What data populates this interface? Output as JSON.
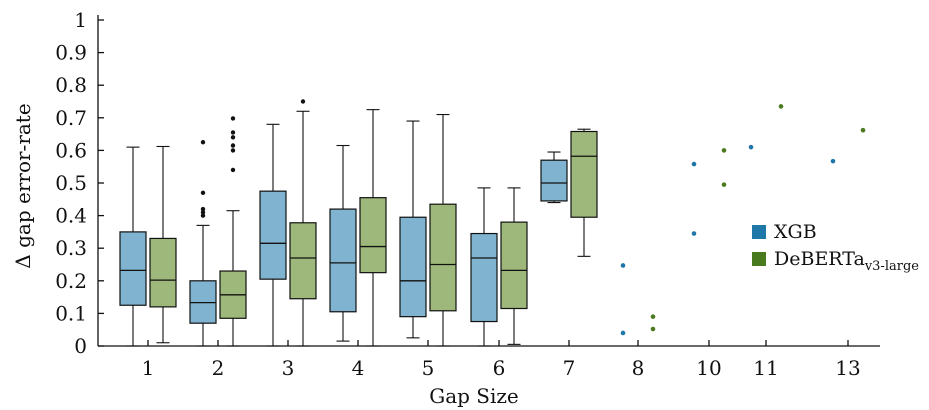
{
  "chart_data": {
    "type": "box",
    "xlabel": "Gap Size",
    "ylabel": "Δ gap error-rate",
    "ylim": [
      0,
      1
    ],
    "yticks": [
      "0",
      "0.1",
      "0.2",
      "0.3",
      "0.4",
      "0.5",
      "0.6",
      "0.7",
      "0.8",
      "0.9",
      "1"
    ],
    "categories": [
      "1",
      "2",
      "3",
      "4",
      "5",
      "6",
      "7",
      "8",
      "10",
      "11",
      "13"
    ],
    "legend": {
      "placement": "right",
      "entries": [
        {
          "label": "XGB",
          "sub": ""
        },
        {
          "label": "DeBERTa",
          "sub": "v3-large"
        }
      ]
    },
    "series": [
      {
        "name": "XGB",
        "color": "#7fb3cf",
        "point_color": "#1f77a8",
        "boxes": [
          {
            "category": "1",
            "whislo": 0.0,
            "q1": 0.125,
            "med": 0.232,
            "q3": 0.35,
            "whishi": 0.61,
            "fliers": []
          },
          {
            "category": "2",
            "whislo": 0.0,
            "q1": 0.07,
            "med": 0.133,
            "q3": 0.2,
            "whishi": 0.37,
            "fliers": [
              0.4,
              0.41,
              0.42,
              0.47,
              0.625
            ]
          },
          {
            "category": "3",
            "whislo": 0.0,
            "q1": 0.205,
            "med": 0.315,
            "q3": 0.475,
            "whishi": 0.68,
            "fliers": []
          },
          {
            "category": "4",
            "whislo": 0.015,
            "q1": 0.105,
            "med": 0.255,
            "q3": 0.42,
            "whishi": 0.615,
            "fliers": []
          },
          {
            "category": "5",
            "whislo": 0.025,
            "q1": 0.09,
            "med": 0.2,
            "q3": 0.395,
            "whishi": 0.69,
            "fliers": []
          },
          {
            "category": "6",
            "whislo": 0.0,
            "q1": 0.075,
            "med": 0.27,
            "q3": 0.345,
            "whishi": 0.485,
            "fliers": []
          },
          {
            "category": "7",
            "whislo": 0.44,
            "q1": 0.445,
            "med": 0.5,
            "q3": 0.57,
            "whishi": 0.595,
            "fliers": []
          },
          {
            "category": "8",
            "points": [
              0.04,
              0.247
            ]
          },
          {
            "category": "10",
            "points": [
              0.345,
              0.558
            ]
          },
          {
            "category": "11",
            "points": [
              0.61
            ]
          },
          {
            "category": "13",
            "points": [
              0.567
            ]
          }
        ]
      },
      {
        "name": "DeBERTa v3-large",
        "color": "#9db87a",
        "point_color": "#4a7a1e",
        "boxes": [
          {
            "category": "1",
            "whislo": 0.01,
            "q1": 0.12,
            "med": 0.202,
            "q3": 0.33,
            "whishi": 0.612,
            "fliers": []
          },
          {
            "category": "2",
            "whislo": 0.0,
            "q1": 0.085,
            "med": 0.157,
            "q3": 0.23,
            "whishi": 0.415,
            "fliers": [
              0.54,
              0.6,
              0.615,
              0.64,
              0.655,
              0.698
            ]
          },
          {
            "category": "3",
            "whislo": 0.0,
            "q1": 0.145,
            "med": 0.27,
            "q3": 0.378,
            "whishi": 0.72,
            "fliers": [
              0.75
            ]
          },
          {
            "category": "4",
            "whislo": 0.0,
            "q1": 0.225,
            "med": 0.305,
            "q3": 0.455,
            "whishi": 0.725,
            "fliers": []
          },
          {
            "category": "5",
            "whislo": 0.0,
            "q1": 0.108,
            "med": 0.25,
            "q3": 0.435,
            "whishi": 0.71,
            "fliers": []
          },
          {
            "category": "6",
            "whislo": 0.005,
            "q1": 0.115,
            "med": 0.232,
            "q3": 0.38,
            "whishi": 0.485,
            "fliers": []
          },
          {
            "category": "7",
            "whislo": 0.275,
            "q1": 0.395,
            "med": 0.582,
            "q3": 0.658,
            "whishi": 0.665,
            "fliers": []
          },
          {
            "category": "8",
            "points": [
              0.052,
              0.09
            ]
          },
          {
            "category": "10",
            "points": [
              0.495,
              0.6
            ]
          },
          {
            "category": "11",
            "points": [
              0.735
            ]
          },
          {
            "category": "13",
            "points": [
              0.662
            ]
          }
        ]
      }
    ]
  }
}
